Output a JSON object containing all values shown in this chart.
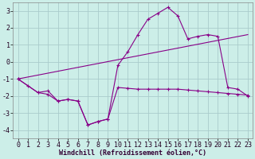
{
  "background_color": "#cceee8",
  "grid_color": "#aacccc",
  "line_color": "#880088",
  "marker_color": "#880088",
  "xlabel": "Windchill (Refroidissement éolien,°C)",
  "xlabel_fontsize": 6.0,
  "tick_fontsize": 6.0,
  "xlim": [
    -0.5,
    23.5
  ],
  "ylim": [
    -4.5,
    3.5
  ],
  "yticks": [
    -4,
    -3,
    -2,
    -1,
    0,
    1,
    2,
    3
  ],
  "xticks": [
    0,
    1,
    2,
    3,
    4,
    5,
    6,
    7,
    8,
    9,
    10,
    11,
    12,
    13,
    14,
    15,
    16,
    17,
    18,
    19,
    20,
    21,
    22,
    23
  ],
  "series1_x": [
    0,
    1,
    2,
    3,
    4,
    5,
    6,
    7,
    8,
    9,
    10,
    11,
    12,
    13,
    14,
    15,
    16,
    17,
    18,
    19,
    20,
    21,
    22,
    23
  ],
  "series1_y": [
    -1.0,
    -1.4,
    -1.8,
    -1.7,
    -2.3,
    -2.2,
    -2.3,
    -3.7,
    -3.5,
    -3.35,
    -1.5,
    -1.55,
    -1.6,
    -1.6,
    -1.6,
    -1.6,
    -1.6,
    -1.65,
    -1.7,
    -1.75,
    -1.8,
    -1.85,
    -1.9,
    -1.95
  ],
  "series2_x": [
    0,
    2,
    3,
    4,
    5,
    6,
    7,
    8,
    9,
    10,
    11,
    12,
    13,
    14,
    15,
    16,
    17,
    18,
    19,
    20,
    21,
    22,
    23
  ],
  "series2_y": [
    -1.0,
    -1.8,
    -1.9,
    -2.3,
    -2.2,
    -2.3,
    -3.7,
    -3.5,
    -3.35,
    -0.2,
    0.6,
    1.6,
    2.5,
    2.85,
    3.2,
    2.7,
    1.35,
    1.5,
    1.6,
    1.5,
    -1.5,
    -1.6,
    -2.0
  ],
  "series3_x": [
    0,
    23
  ],
  "series3_y": [
    -1.0,
    1.6
  ]
}
